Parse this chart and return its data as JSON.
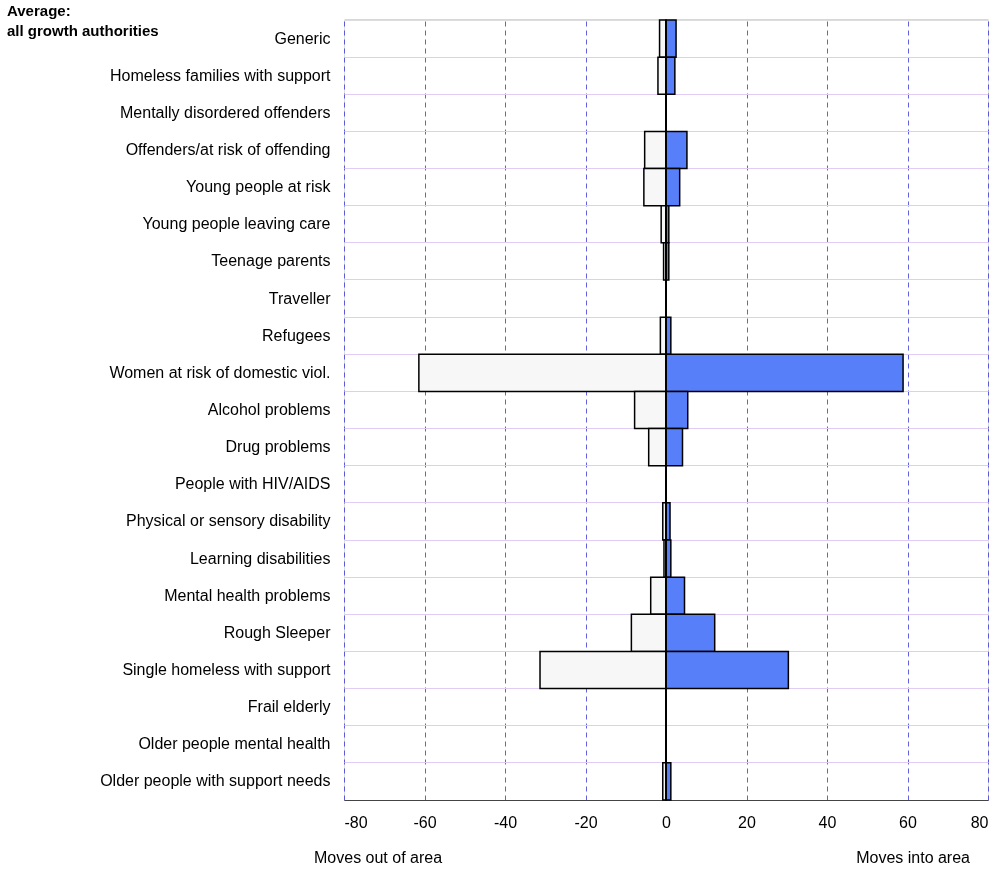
{
  "chart_data": {
    "type": "bar",
    "orientation": "horizontal",
    "stacked": true,
    "title": "Average:\nall growth authorities",
    "categories": [
      "Generic",
      "Homeless families with support",
      "Mentally disordered offenders",
      "Offenders/at risk of offending",
      "Young people at risk",
      "Young people leaving care",
      "Teenage parents",
      "Traveller",
      "Refugees",
      "Women at risk of domestic viol.",
      "Alcohol problems",
      "Drug problems",
      "People with HIV/AIDS",
      "Physical or sensory disability",
      "Learning disabilities",
      "Mental health problems",
      "Rough Sleeper",
      "Single homeless with support",
      "Frail elderly",
      "Older people mental health",
      "Older people with support needs"
    ],
    "series": [
      {
        "color": "#f7f7f7",
        "values": [
          -1.6,
          -2.0,
          null,
          -5.3,
          -5.5,
          -1.2,
          -0.6,
          null,
          -1.4,
          -61.4,
          -7.8,
          -4.3,
          0,
          -0.8,
          -0.5,
          -3.8,
          -8.6,
          -31.3,
          0,
          0,
          -0.8
        ]
      },
      {
        "color": "#587ffa",
        "values": [
          2.5,
          2.2,
          null,
          5.2,
          3.4,
          0.7,
          0.7,
          null,
          1.2,
          58.9,
          5.4,
          4.1,
          0,
          1.0,
          1.2,
          4.6,
          12.1,
          30.4,
          0,
          0,
          1.2
        ]
      }
    ],
    "xlim": [
      -80,
      80
    ],
    "xticks": [
      -80,
      -60,
      -40,
      -20,
      0,
      20,
      40,
      60,
      80
    ],
    "grid": true,
    "ref_lines": [
      {
        "axis": "x",
        "value": 0,
        "color": "#000000"
      }
    ],
    "annotations": [
      "Moves out of area",
      "Moves into area"
    ]
  }
}
